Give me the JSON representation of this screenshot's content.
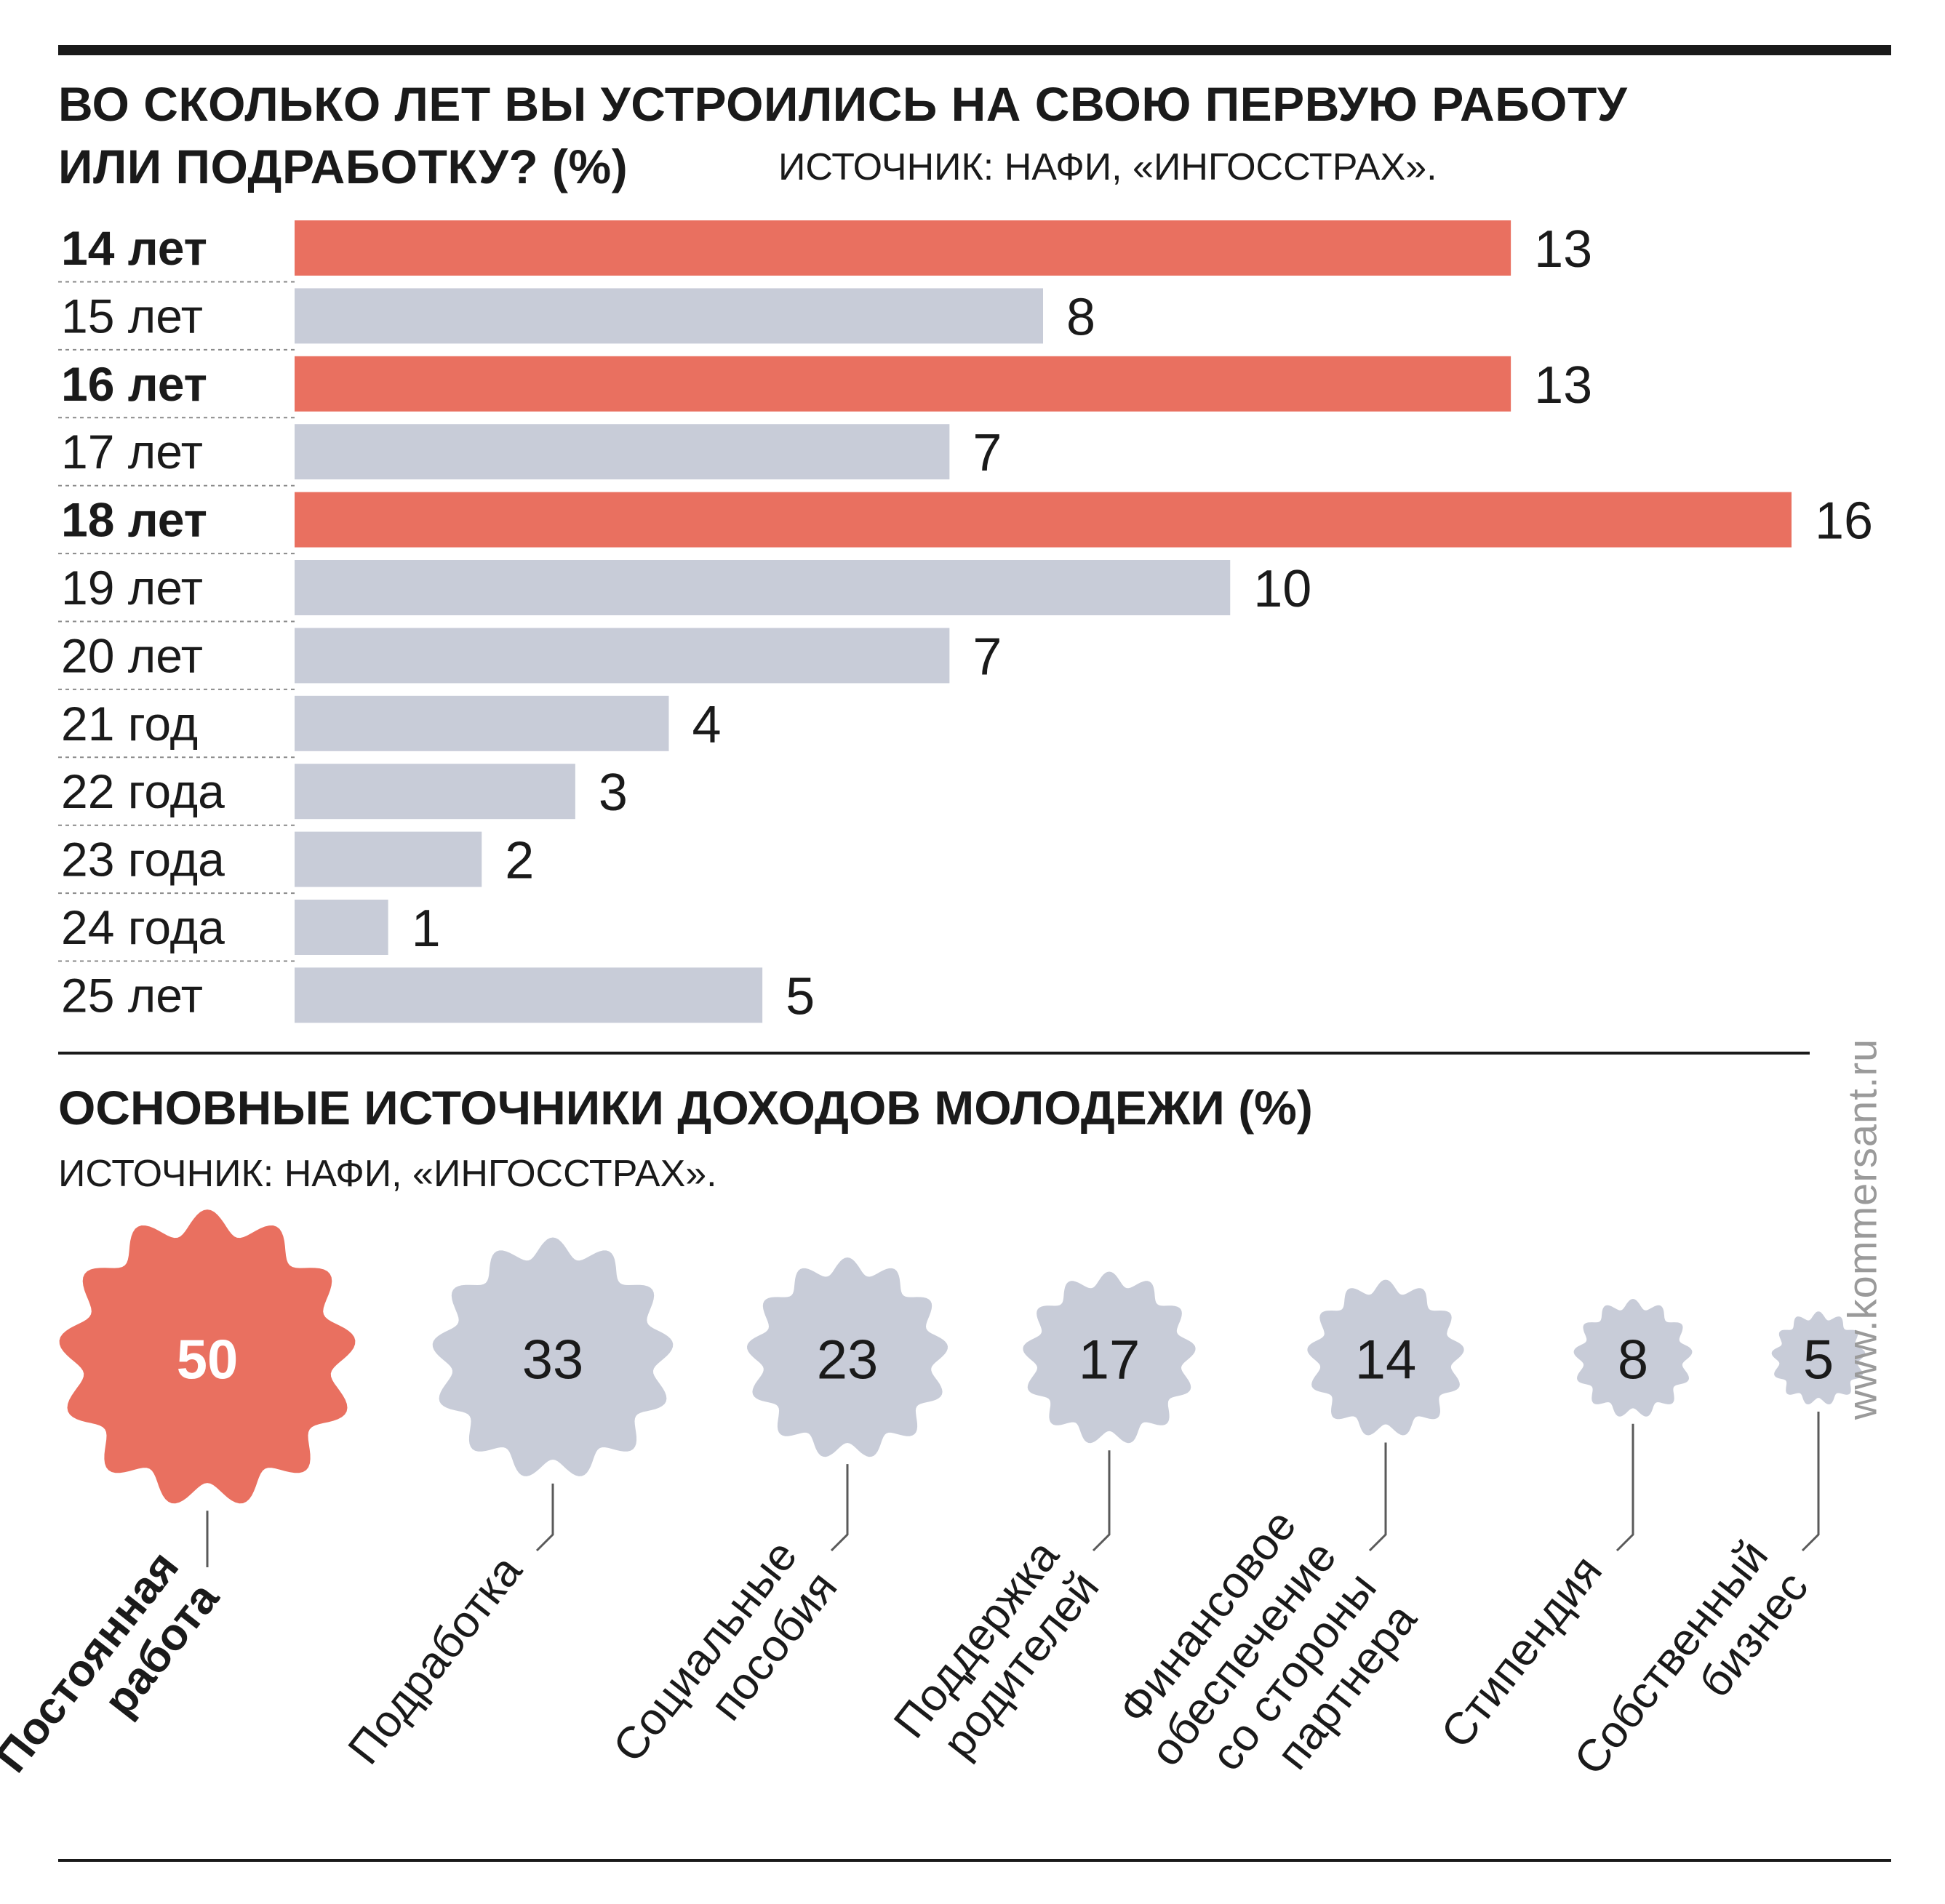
{
  "chart_data": [
    {
      "type": "bar",
      "title": "ВО СКОЛЬКО ЛЕТ ВЫ УСТРОИЛИСЬ НА СВОЮ ПЕРВУЮ РАБОТУ ИЛИ ПОДРАБОТКУ? (%)",
      "title_line1": "ВО СКОЛЬКО ЛЕТ ВЫ УСТРОИЛИСЬ НА СВОЮ ПЕРВУЮ РАБОТУ",
      "title_line2": "ИЛИ ПОДРАБОТКУ? (%)",
      "source": "ИСТОЧНИК: НАФИ, «ИНГОССТРАХ».",
      "orientation": "horizontal",
      "categories": [
        "14 лет",
        "15 лет",
        "16 лет",
        "17 лет",
        "18 лет",
        "19 лет",
        "20 лет",
        "21 год",
        "22 года",
        "23 года",
        "24 года",
        "25 лет"
      ],
      "values": [
        13,
        8,
        13,
        7,
        16,
        10,
        7,
        4,
        3,
        2,
        1,
        5
      ],
      "highlighted": [
        true,
        false,
        true,
        false,
        true,
        false,
        false,
        false,
        false,
        false,
        false,
        false
      ],
      "xlim": [
        0,
        16
      ],
      "grid": false,
      "colors": {
        "highlight": "#e97060",
        "normal": "#c8ccd8"
      }
    },
    {
      "type": "bubble",
      "title": "ОСНОВНЫЕ ИСТОЧНИКИ ДОХОДОВ МОЛОДЕЖИ (%)",
      "source": "ИСТОЧНИК: НАФИ, «ИНГОССТРАХ».",
      "categories": [
        [
          "Постоянная",
          "работа"
        ],
        [
          "Подработка"
        ],
        [
          "Социальные",
          "пособия"
        ],
        [
          "Поддержка",
          "родителей"
        ],
        [
          "Финансовое",
          "обеспечение",
          "со стороны",
          "партнера"
        ],
        [
          "Стипендия"
        ],
        [
          "Собственный",
          "бизнес"
        ]
      ],
      "values": [
        50,
        33,
        23,
        17,
        14,
        8,
        5
      ],
      "highlighted": [
        true,
        false,
        false,
        false,
        false,
        false,
        false
      ],
      "colors": {
        "highlight": "#e97060",
        "normal": "#c8ccd8",
        "highlight_text": "#ffffff",
        "normal_text": "#1a1a1a"
      }
    }
  ],
  "watermark": "www.kommersant.ru"
}
